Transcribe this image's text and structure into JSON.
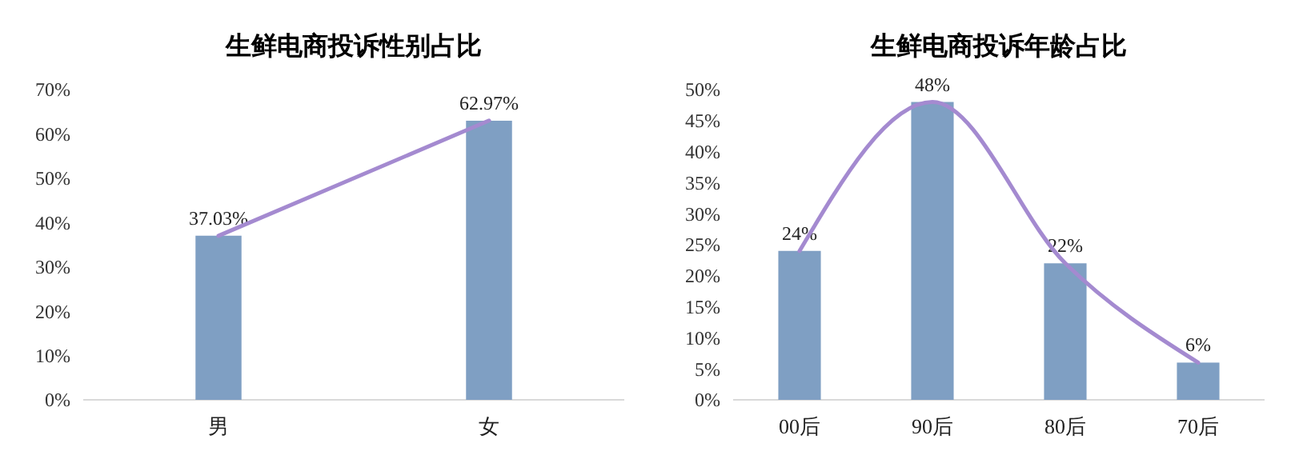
{
  "chart_data": [
    {
      "type": "bar",
      "title": "生鲜电商投诉性别占比",
      "categories": [
        "男",
        "女"
      ],
      "series": [
        {
          "color": "#7f9fc3",
          "values": [
            37.03,
            62.97
          ],
          "value_labels": [
            "37.03%",
            "62.97%"
          ]
        },
        {
          "type": "line",
          "color": "#a48ad0",
          "values": [
            37,
            63
          ]
        }
      ],
      "ylim": [
        0,
        70
      ],
      "yticks": [
        {
          "value": 0,
          "label": "0%"
        },
        {
          "value": 10,
          "label": "10%"
        },
        {
          "value": 20,
          "label": "20%"
        },
        {
          "value": 30,
          "label": "30%"
        },
        {
          "value": 40,
          "label": "40%"
        },
        {
          "value": 50,
          "label": "50%"
        },
        {
          "value": 60,
          "label": "60%"
        },
        {
          "value": 70,
          "label": "70%"
        }
      ],
      "grid": false,
      "marker": "none"
    },
    {
      "type": "bar",
      "title": "生鲜电商投诉年龄占比",
      "categories": [
        "00后",
        "90后",
        "80后",
        "70后"
      ],
      "series": [
        {
          "color": "#7f9fc3",
          "values": [
            24,
            48,
            22,
            6
          ],
          "value_labels": [
            "24%",
            "48%",
            "22%",
            "6%"
          ]
        },
        {
          "type": "line",
          "color": "#a48ad0",
          "values": [
            24,
            48,
            22,
            6
          ]
        }
      ],
      "ylim": [
        0,
        50
      ],
      "yticks": [
        {
          "value": 0,
          "label": "0%"
        },
        {
          "value": 5,
          "label": "5%"
        },
        {
          "value": 10,
          "label": "10%"
        },
        {
          "value": 15,
          "label": "15%"
        },
        {
          "value": 20,
          "label": "20%"
        },
        {
          "value": 25,
          "label": "25%"
        },
        {
          "value": 30,
          "label": "30%"
        },
        {
          "value": 35,
          "label": "35%"
        },
        {
          "value": 40,
          "label": "40%"
        },
        {
          "value": 45,
          "label": "45%"
        },
        {
          "value": 50,
          "label": "50%"
        }
      ],
      "grid": false,
      "marker": "none"
    }
  ]
}
